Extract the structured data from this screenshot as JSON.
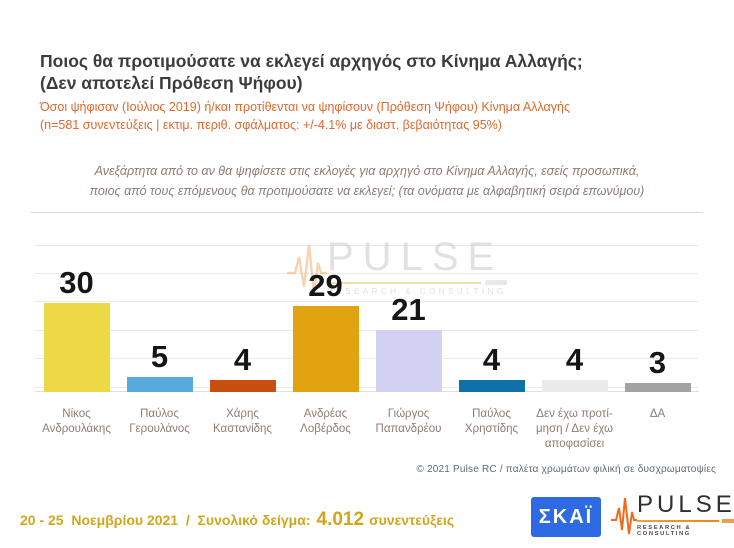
{
  "header": {
    "title_line1": "Ποιος θα προτιμούσατε να εκλεγεί αρχηγός στο Κίνημα Αλλαγής;",
    "title_line2": "(Δεν αποτελεί Πρόθεση Ψήφου)",
    "subtitle_line1": "Όσοι ψήφισαν (Ιούλιος 2019) ή/και προτίθενται να ψηφίσουν  (Πρόθεση Ψήφου) Κίνημα Αλλαγής",
    "subtitle_line2": "(n=581 συνεντεύξεις | εκτιμ. περιθ. σφάλματος: +/-4.1% με διαστ. βεβαιότητας 95%)"
  },
  "note": {
    "line1": "Ανεξάρτητα από το αν θα ψηφίσετε στις εκλογές για αρχηγό στο Κίνημα Αλλαγής, εσείς προσωπικά,",
    "line2": "ποιος από τους επόμενους θα προτιμούσατε να εκλεγεί; (τα ονόματα με αλφαβητική σειρά επωνύμου)"
  },
  "chart_data": {
    "type": "bar",
    "title": "Ποιος θα προτιμούσατε να εκλεγεί αρχηγός στο Κίνημα Αλλαγής; (Δεν αποτελεί Πρόθεση Ψήφου)",
    "categories": [
      "Νίκος Ανδρουλάκης",
      "Παύλος Γερουλάνος",
      "Χάρης Καστανίδης",
      "Ανδρέας Λοβέρδος",
      "Γιώργος Παπανδρέου",
      "Παύλος Χρηστίδης",
      "Δεν έχω προτίμηση / Δεν έχω αποφασίσει",
      "ΔΑ"
    ],
    "label_lines": [
      [
        "Νίκος",
        "Ανδρουλάκης"
      ],
      [
        "Παύλος",
        "Γερουλάνος"
      ],
      [
        "Χάρης",
        "Καστανίδης"
      ],
      [
        "Ανδρέας",
        "Λοβέρδος"
      ],
      [
        "Γιώργος",
        "Παπανδρέου"
      ],
      [
        "Παύλος",
        "Χρηστίδης"
      ],
      [
        "Δεν έχω προτί-",
        "μηση / Δεν έχω",
        "αποφασίσει"
      ],
      [
        "ΔΑ"
      ]
    ],
    "values": [
      30,
      5,
      4,
      29,
      21,
      4,
      4,
      3
    ],
    "bar_colors": [
      "#EDD845",
      "#58AADD",
      "#C84F10",
      "#E2A310",
      "#D3D2F3",
      "#0E71A9",
      "#E9EAEA",
      "#A2A2A2"
    ],
    "unit": "percent",
    "ylim": [
      0,
      35
    ],
    "grid": "horizontal",
    "xlabel": "",
    "ylabel": ""
  },
  "watermark": {
    "text": "PULSE",
    "subtext": "RESEARCH & CONSULTING"
  },
  "copyright": "© 2021 Pulse RC   /   παλέτα χρωμάτων φιλική σε δυσχρωματοψίες",
  "footer": {
    "date_text": "20 - 25  Νοεμβρίου 2021  /  Συνολικό δείγμα:",
    "sample_value": "4.012",
    "sample_suffix": "συνεντεύξεις",
    "skai_logo_text": "ΣΚΑΪ",
    "pulse_logo_text": "PULSE",
    "pulse_logo_subtext": "RESEARCH & CONSULTING"
  },
  "colors": {
    "title_gray": "#3C3C3C",
    "accent_orange": "#E0682C",
    "muted_brown": "#8D7C74",
    "gold": "#D1A61B",
    "skai_blue": "#2E6AE3",
    "pulse_orange": "#EE6B1C"
  }
}
